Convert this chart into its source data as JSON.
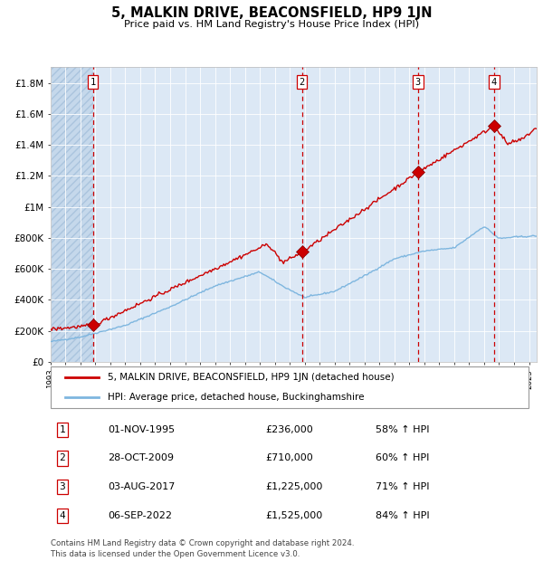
{
  "title": "5, MALKIN DRIVE, BEACONSFIELD, HP9 1JN",
  "subtitle": "Price paid vs. HM Land Registry's House Price Index (HPI)",
  "footer1": "Contains HM Land Registry data © Crown copyright and database right 2024.",
  "footer2": "This data is licensed under the Open Government Licence v3.0.",
  "legend_red": "5, MALKIN DRIVE, BEACONSFIELD, HP9 1JN (detached house)",
  "legend_blue": "HPI: Average price, detached house, Buckinghamshire",
  "transactions": [
    {
      "num": 1,
      "date": "01-NOV-1995",
      "price": "£236,000",
      "hpi_pct": "58% ↑ HPI",
      "x_year": 1995.83,
      "y_val": 236000
    },
    {
      "num": 2,
      "date": "28-OCT-2009",
      "price": "£710,000",
      "hpi_pct": "60% ↑ HPI",
      "x_year": 2009.82,
      "y_val": 710000
    },
    {
      "num": 3,
      "date": "03-AUG-2017",
      "price": "£1,225,000",
      "hpi_pct": "71% ↑ HPI",
      "x_year": 2017.58,
      "y_val": 1225000
    },
    {
      "num": 4,
      "date": "06-SEP-2022",
      "price": "£1,525,000",
      "hpi_pct": "84% ↑ HPI",
      "x_year": 2022.67,
      "y_val": 1525000
    }
  ],
  "vline_years": [
    1995.83,
    2009.82,
    2017.58,
    2022.67
  ],
  "ylim": [
    0,
    1900000
  ],
  "xlim_start": 1993.0,
  "xlim_end": 2025.5,
  "red_color": "#cc0000",
  "blue_color": "#7eb6df",
  "background_color": "#dce8f5",
  "grid_color": "#ffffff",
  "vline_color": "#cc0000",
  "yticks": [
    0,
    200000,
    400000,
    600000,
    800000,
    1000000,
    1200000,
    1400000,
    1600000,
    1800000
  ],
  "ytick_labels": [
    "£0",
    "£200K",
    "£400K",
    "£600K",
    "£800K",
    "£1M",
    "£1.2M",
    "£1.4M",
    "£1.6M",
    "£1.8M"
  ]
}
